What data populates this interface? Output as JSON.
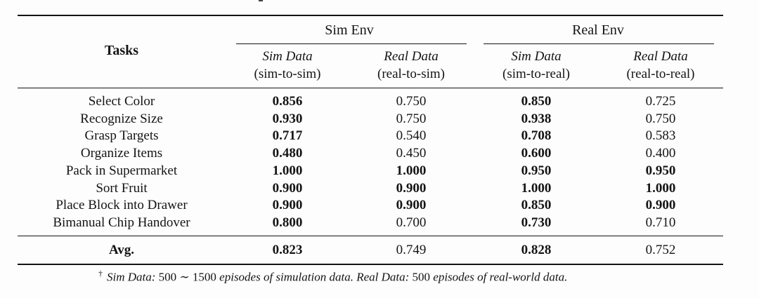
{
  "table": {
    "tasks_header": "Tasks",
    "groups": [
      {
        "label": "Sim Env",
        "subcolumns": [
          {
            "line1": "Sim Data",
            "line2": "(sim-to-sim)"
          },
          {
            "line1": "Real Data",
            "line2": "(real-to-sim)"
          }
        ]
      },
      {
        "label": "Real Env",
        "subcolumns": [
          {
            "line1": "Sim Data",
            "line2": "(sim-to-real)"
          },
          {
            "line1": "Real Data",
            "line2": "(real-to-real)"
          }
        ]
      }
    ],
    "rows": [
      {
        "task": "Select Color",
        "values": [
          "0.856",
          "0.750",
          "0.850",
          "0.725"
        ],
        "bold": [
          true,
          false,
          true,
          false
        ]
      },
      {
        "task": "Recognize Size",
        "values": [
          "0.930",
          "0.750",
          "0.938",
          "0.750"
        ],
        "bold": [
          true,
          false,
          true,
          false
        ]
      },
      {
        "task": "Grasp Targets",
        "values": [
          "0.717",
          "0.540",
          "0.708",
          "0.583"
        ],
        "bold": [
          true,
          false,
          true,
          false
        ]
      },
      {
        "task": "Organize Items",
        "values": [
          "0.480",
          "0.450",
          "0.600",
          "0.400"
        ],
        "bold": [
          true,
          false,
          true,
          false
        ]
      },
      {
        "task": "Pack in Supermarket",
        "values": [
          "1.000",
          "1.000",
          "0.950",
          "0.950"
        ],
        "bold": [
          true,
          true,
          true,
          true
        ]
      },
      {
        "task": "Sort Fruit",
        "values": [
          "0.900",
          "0.900",
          "1.000",
          "1.000"
        ],
        "bold": [
          true,
          true,
          true,
          true
        ]
      },
      {
        "task": "Place Block into Drawer",
        "values": [
          "0.900",
          "0.900",
          "0.850",
          "0.900"
        ],
        "bold": [
          true,
          true,
          true,
          true
        ]
      },
      {
        "task": "Bimanual Chip Handover",
        "values": [
          "0.800",
          "0.700",
          "0.730",
          "0.710"
        ],
        "bold": [
          true,
          false,
          true,
          false
        ]
      }
    ],
    "avg": {
      "task": "Avg.",
      "values": [
        "0.823",
        "0.749",
        "0.828",
        "0.752"
      ],
      "bold": [
        true,
        false,
        true,
        false
      ]
    }
  },
  "footnote": {
    "dagger": "†",
    "sim_label": "Sim Data:",
    "sim_text_a": "500",
    "tilde": "∼",
    "sim_text_b": "1500",
    "sim_desc": "episodes of simulation data.",
    "real_label": "Real Data:",
    "real_num": "500",
    "real_desc": "episodes of real-world data."
  }
}
